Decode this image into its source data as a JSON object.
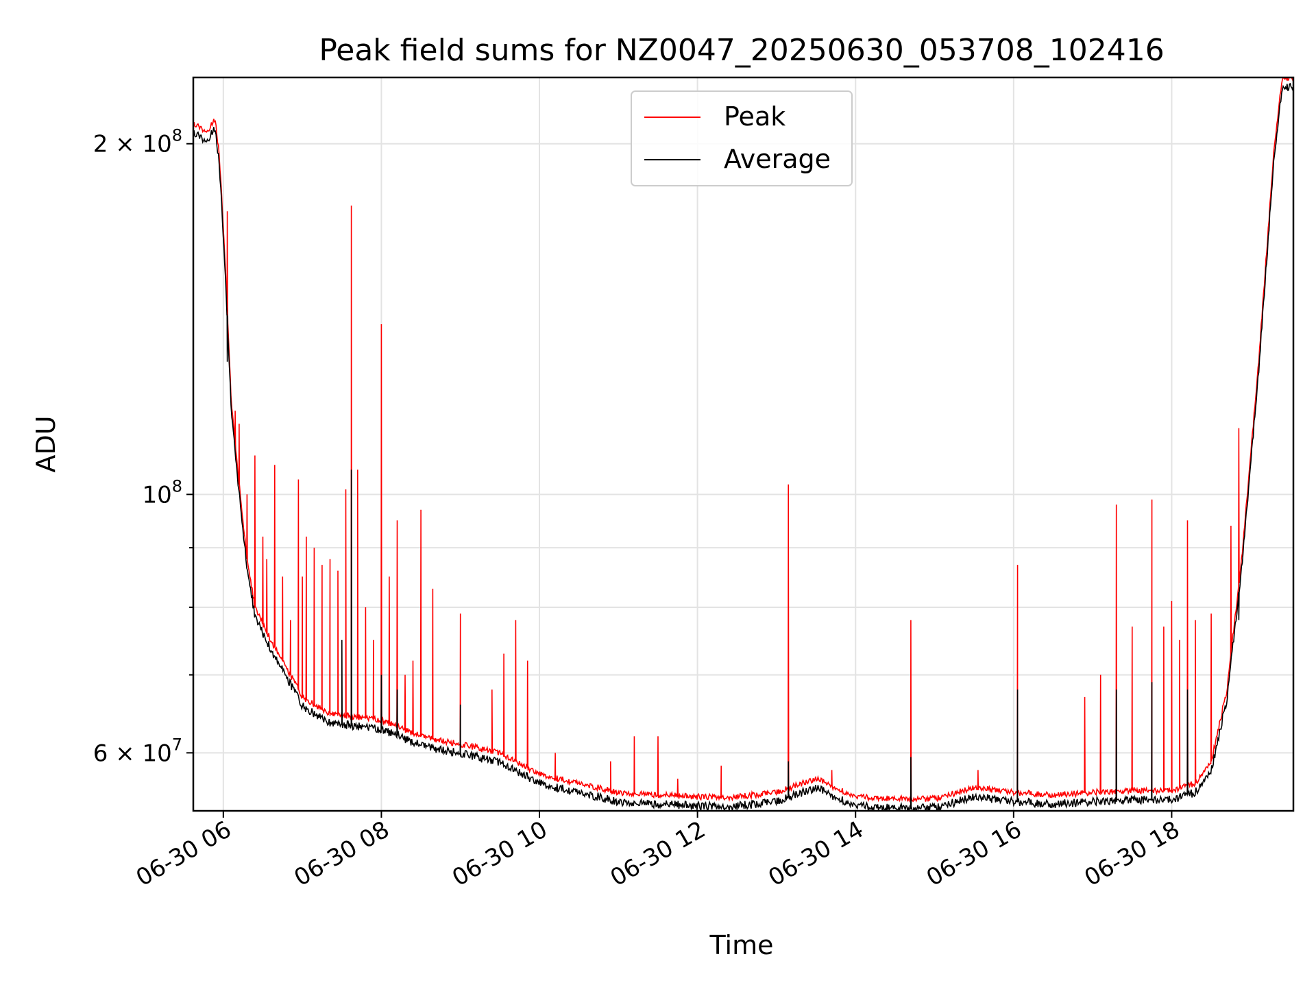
{
  "chart_data": {
    "type": "line",
    "title": "Peak field sums for NZ0047_20250630_053708_102416",
    "xlabel": "Time",
    "ylabel": "ADU",
    "yscale": "log",
    "grid": true,
    "legend_position": "top-center",
    "x_unit": "hours (2025-06-30)",
    "xlim": [
      5.62,
      19.54
    ],
    "ylim": [
      53500000,
      228000000
    ],
    "x_ticks": [
      {
        "value": 6,
        "label": "06-30 06"
      },
      {
        "value": 8,
        "label": "06-30 08"
      },
      {
        "value": 10,
        "label": "06-30 10"
      },
      {
        "value": 12,
        "label": "06-30 12"
      },
      {
        "value": 14,
        "label": "06-30 14"
      },
      {
        "value": 16,
        "label": "06-30 16"
      },
      {
        "value": 18,
        "label": "06-30 18"
      }
    ],
    "y_ticks": [
      {
        "value": 60000000,
        "label": "6 × 10",
        "exp": "7"
      },
      {
        "value": 100000000,
        "label": "10",
        "exp": "8"
      },
      {
        "value": 200000000,
        "label": "2 × 10",
        "exp": "8"
      }
    ],
    "y_minor_ticks": [
      70000000,
      80000000,
      90000000
    ],
    "series": [
      {
        "name": "Peak",
        "color": "#ff0000",
        "baseline": [
          [
            5.62,
            208000000
          ],
          [
            5.8,
            205000000
          ],
          [
            5.9,
            210000000
          ],
          [
            5.95,
            195000000
          ],
          [
            6.0,
            170000000
          ],
          [
            6.05,
            145000000
          ],
          [
            6.1,
            120000000
          ],
          [
            6.2,
            102000000
          ],
          [
            6.3,
            88000000
          ],
          [
            6.4,
            80000000
          ],
          [
            6.6,
            75000000
          ],
          [
            6.8,
            71000000
          ],
          [
            7.0,
            67000000
          ],
          [
            7.3,
            65000000
          ],
          [
            7.6,
            64500000
          ],
          [
            8.0,
            64000000
          ],
          [
            8.5,
            62000000
          ],
          [
            9.0,
            61000000
          ],
          [
            9.5,
            60000000
          ],
          [
            10.0,
            57500000
          ],
          [
            10.5,
            56500000
          ],
          [
            11.0,
            55500000
          ],
          [
            11.5,
            55200000
          ],
          [
            12.0,
            55000000
          ],
          [
            12.5,
            55000000
          ],
          [
            13.0,
            55500000
          ],
          [
            13.5,
            57000000
          ],
          [
            14.0,
            55000000
          ],
          [
            14.5,
            54800000
          ],
          [
            15.0,
            54800000
          ],
          [
            15.5,
            56000000
          ],
          [
            16.0,
            55500000
          ],
          [
            16.5,
            55200000
          ],
          [
            17.0,
            55500000
          ],
          [
            17.5,
            55700000
          ],
          [
            18.0,
            55700000
          ],
          [
            18.3,
            56500000
          ],
          [
            18.5,
            59000000
          ],
          [
            18.7,
            68000000
          ],
          [
            18.9,
            90000000
          ],
          [
            19.1,
            130000000
          ],
          [
            19.3,
            200000000
          ],
          [
            19.4,
            228000000
          ],
          [
            19.54,
            228000000
          ]
        ],
        "spikes": [
          [
            6.05,
            175000000
          ],
          [
            6.15,
            118000000
          ],
          [
            6.2,
            115000000
          ],
          [
            6.3,
            100000000
          ],
          [
            6.4,
            108000000
          ],
          [
            6.5,
            92000000
          ],
          [
            6.55,
            88000000
          ],
          [
            6.65,
            106000000
          ],
          [
            6.75,
            85000000
          ],
          [
            6.85,
            78000000
          ],
          [
            6.95,
            103000000
          ],
          [
            7.0,
            85000000
          ],
          [
            7.05,
            92000000
          ],
          [
            7.15,
            90000000
          ],
          [
            7.25,
            87000000
          ],
          [
            7.35,
            88000000
          ],
          [
            7.45,
            86000000
          ],
          [
            7.55,
            101000000
          ],
          [
            7.62,
            177000000
          ],
          [
            7.7,
            105000000
          ],
          [
            7.8,
            80000000
          ],
          [
            7.9,
            75000000
          ],
          [
            8.0,
            140000000
          ],
          [
            8.1,
            85000000
          ],
          [
            8.2,
            95000000
          ],
          [
            8.3,
            70000000
          ],
          [
            8.4,
            72000000
          ],
          [
            8.5,
            97000000
          ],
          [
            8.65,
            83000000
          ],
          [
            9.0,
            79000000
          ],
          [
            9.4,
            68000000
          ],
          [
            9.55,
            73000000
          ],
          [
            9.7,
            78000000
          ],
          [
            9.85,
            72000000
          ],
          [
            10.2,
            60000000
          ],
          [
            10.9,
            59000000
          ],
          [
            11.2,
            62000000
          ],
          [
            11.5,
            62000000
          ],
          [
            11.75,
            57000000
          ],
          [
            12.3,
            58500000
          ],
          [
            13.15,
            102000000
          ],
          [
            13.7,
            58000000
          ],
          [
            14.7,
            78000000
          ],
          [
            15.55,
            58000000
          ],
          [
            16.05,
            87000000
          ],
          [
            16.9,
            67000000
          ],
          [
            17.1,
            70000000
          ],
          [
            17.3,
            98000000
          ],
          [
            17.5,
            77000000
          ],
          [
            17.75,
            99000000
          ],
          [
            17.9,
            77000000
          ],
          [
            18.0,
            81000000
          ],
          [
            18.1,
            75000000
          ],
          [
            18.2,
            95000000
          ],
          [
            18.3,
            78000000
          ],
          [
            18.5,
            79000000
          ],
          [
            18.75,
            94000000
          ],
          [
            18.85,
            114000000
          ]
        ]
      },
      {
        "name": "Average",
        "color": "#000000",
        "offset_ratio": 0.982,
        "spikes": [
          [
            6.05,
            130000000
          ],
          [
            7.62,
            105000000
          ],
          [
            7.5,
            75000000
          ],
          [
            8.0,
            70000000
          ],
          [
            8.2,
            68000000
          ],
          [
            9.0,
            66000000
          ],
          [
            13.15,
            59000000
          ],
          [
            14.7,
            59500000
          ],
          [
            16.05,
            68000000
          ],
          [
            17.3,
            68000000
          ],
          [
            17.75,
            69000000
          ],
          [
            18.2,
            68000000
          ],
          [
            18.85,
            78000000
          ]
        ]
      }
    ]
  }
}
